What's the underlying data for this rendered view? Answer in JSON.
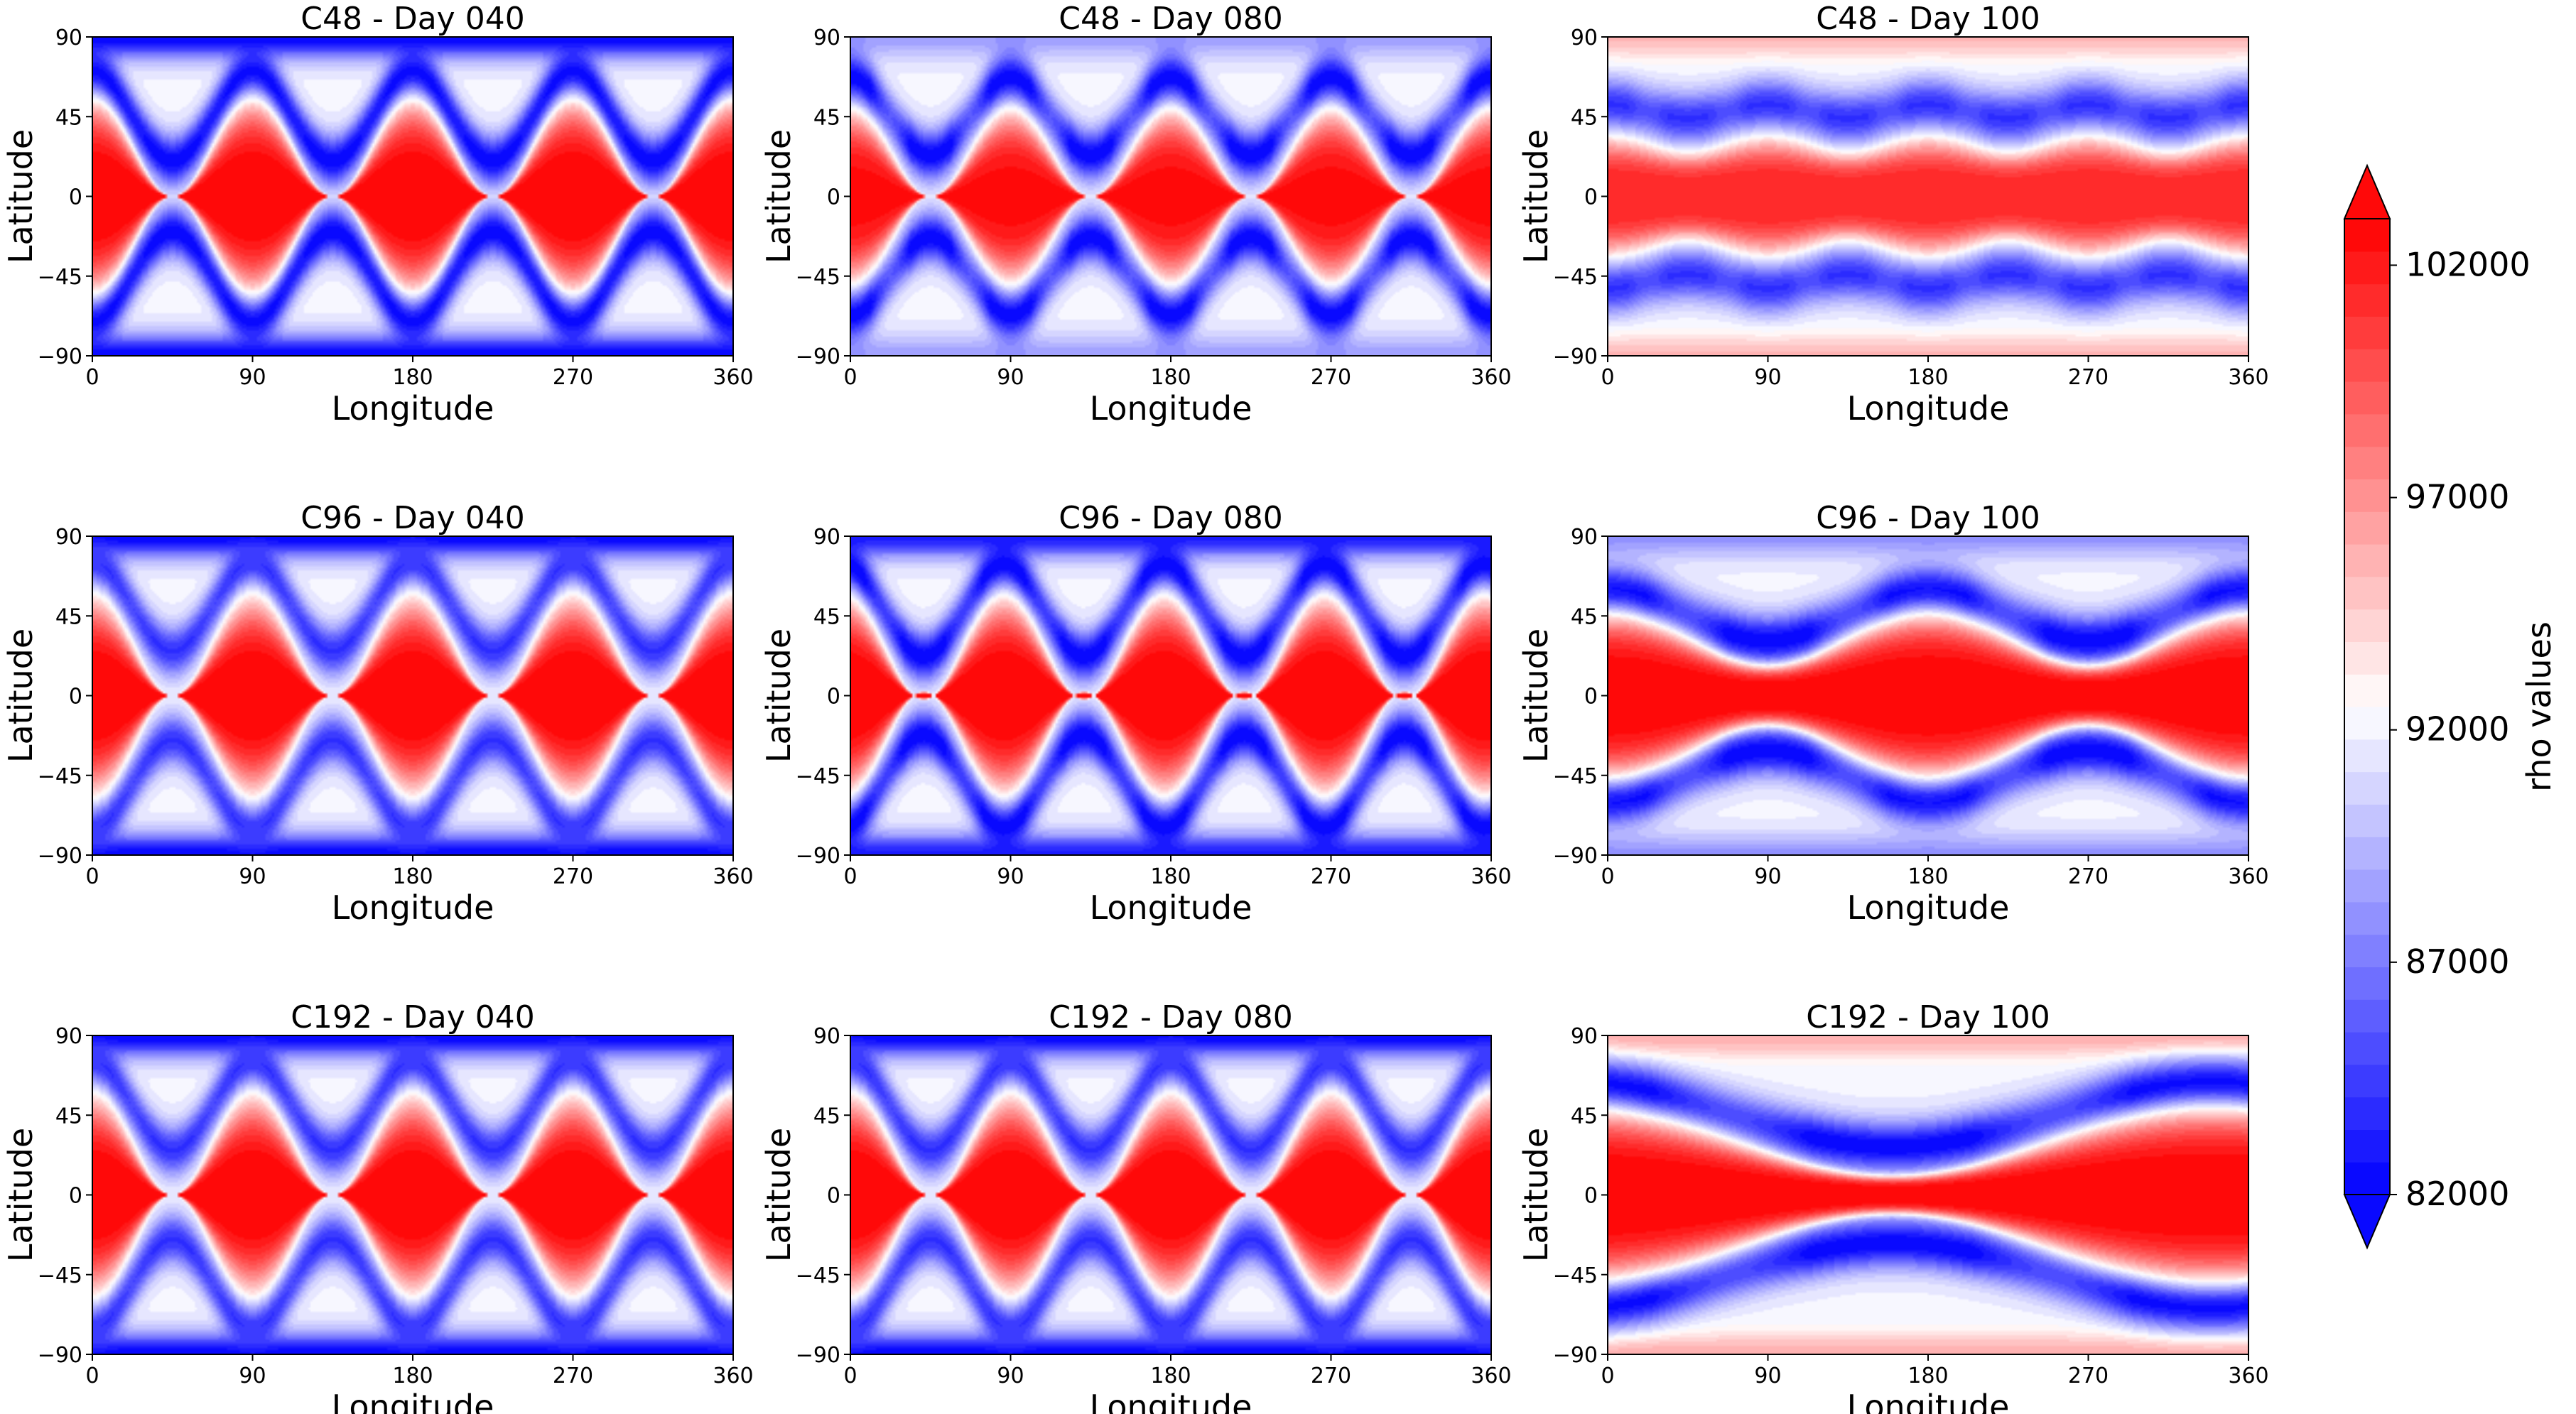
{
  "figure": {
    "colorbar": {
      "label": "rho values",
      "min": 82000,
      "max": 103000,
      "ticks": [
        82000,
        87000,
        92000,
        97000,
        102000
      ],
      "tick_labels": [
        "82000",
        "87000",
        "92000",
        "97000",
        "102000"
      ],
      "levels": 30,
      "extend": "both",
      "colors": {
        "low": "#0000ff",
        "mid": "#ffffff",
        "high": "#ff0000"
      }
    }
  },
  "chart_data": [
    {
      "type": "heatmap",
      "title": "C48 - Day 040",
      "xlabel": "Longitude",
      "ylabel": "Latitude",
      "xlim": [
        0,
        360
      ],
      "ylim": [
        -90,
        90
      ],
      "xticks": [
        "0",
        "90",
        "180",
        "270",
        "360"
      ],
      "yticks": [
        "90",
        "45",
        "0",
        "-45",
        "-90"
      ],
      "pattern": {
        "k": 4,
        "amp_deg": 25,
        "phase_deg": 0,
        "band_deg": 25,
        "peak": 103000,
        "trough": 82000,
        "trough_lat": 45,
        "pole": 82000,
        "trough_mod": 0.1
      }
    },
    {
      "type": "heatmap",
      "title": "C48 - Day 080",
      "xlabel": "Longitude",
      "ylabel": "Latitude",
      "xlim": [
        0,
        360
      ],
      "ylim": [
        -90,
        90
      ],
      "xticks": [
        "0",
        "90",
        "180",
        "270",
        "360"
      ],
      "yticks": [
        "90",
        "45",
        "0",
        "-45",
        "-90"
      ],
      "pattern": {
        "k": 4,
        "amp_deg": 22,
        "phase_deg": 0,
        "band_deg": 22,
        "peak": 102500,
        "trough": 82000,
        "trough_lat": 45,
        "pole": 88500,
        "trough_mod": 0.35
      }
    },
    {
      "type": "heatmap",
      "title": "C48 - Day 100",
      "xlabel": "Longitude",
      "ylabel": "Latitude",
      "xlim": [
        0,
        360
      ],
      "ylim": [
        -90,
        90
      ],
      "xticks": [
        "0",
        "90",
        "180",
        "270",
        "360"
      ],
      "yticks": [
        "90",
        "45",
        "0",
        "-45",
        "-90"
      ],
      "pattern": {
        "k": 4,
        "amp_deg": 4,
        "phase_deg": 0,
        "band_deg": 26,
        "peak": 101500,
        "trough": 84000,
        "trough_lat": 48,
        "pole": 95500,
        "trough_mod": 0.15
      }
    },
    {
      "type": "heatmap",
      "title": "C96 - Day 040",
      "xlabel": "Longitude",
      "ylabel": "Latitude",
      "xlim": [
        0,
        360
      ],
      "ylim": [
        -90,
        90
      ],
      "xticks": [
        "0",
        "90",
        "180",
        "270",
        "360"
      ],
      "yticks": [
        "90",
        "45",
        "0",
        "-45",
        "-90"
      ],
      "pattern": {
        "k": 4,
        "amp_deg": 25,
        "phase_deg": 0,
        "band_deg": 25,
        "peak": 103000,
        "trough": 84000,
        "trough_lat": 50,
        "pole": 82000,
        "trough_mod": 0.1
      }
    },
    {
      "type": "heatmap",
      "title": "C96 - Day 080",
      "xlabel": "Longitude",
      "ylabel": "Latitude",
      "xlim": [
        0,
        360
      ],
      "ylim": [
        -90,
        90
      ],
      "xticks": [
        "0",
        "90",
        "180",
        "270",
        "360"
      ],
      "yticks": [
        "90",
        "45",
        "0",
        "-45",
        "-90"
      ],
      "pattern": {
        "k": 4,
        "amp_deg": 26,
        "phase_deg": 15,
        "band_deg": 24,
        "peak": 103000,
        "trough": 82000,
        "trough_lat": 48,
        "pole": 83000,
        "trough_mod": 0.25
      }
    },
    {
      "type": "heatmap",
      "title": "C96 - Day 100",
      "xlabel": "Longitude",
      "ylabel": "Latitude",
      "xlim": [
        0,
        360
      ],
      "ylim": [
        -90,
        90
      ],
      "xticks": [
        "0",
        "90",
        "180",
        "270",
        "360"
      ],
      "yticks": [
        "90",
        "45",
        "0",
        "-45",
        "-90"
      ],
      "pattern": {
        "k": 2,
        "amp_deg": 14,
        "phase_deg": 0,
        "band_deg": 30,
        "peak": 103000,
        "trough": 82000,
        "trough_lat": 45,
        "pole": 88000,
        "trough_mod": 0.3
      }
    },
    {
      "type": "heatmap",
      "title": "C192 - Day 040",
      "xlabel": "Longitude",
      "ylabel": "Latitude",
      "xlim": [
        0,
        360
      ],
      "ylim": [
        -90,
        90
      ],
      "xticks": [
        "0",
        "90",
        "180",
        "270",
        "360"
      ],
      "yticks": [
        "90",
        "45",
        "0",
        "-45",
        "-90"
      ],
      "pattern": {
        "k": 4,
        "amp_deg": 25,
        "phase_deg": 0,
        "band_deg": 25,
        "peak": 103000,
        "trough": 84000,
        "trough_lat": 50,
        "pole": 82000,
        "trough_mod": 0.1
      }
    },
    {
      "type": "heatmap",
      "title": "C192 - Day 080",
      "xlabel": "Longitude",
      "ylabel": "Latitude",
      "xlim": [
        0,
        360
      ],
      "ylim": [
        -90,
        90
      ],
      "xticks": [
        "0",
        "90",
        "180",
        "270",
        "360"
      ],
      "yticks": [
        "90",
        "45",
        "0",
        "-45",
        "-90"
      ],
      "pattern": {
        "k": 4,
        "amp_deg": 25,
        "phase_deg": 0,
        "band_deg": 25,
        "peak": 103000,
        "trough": 84000,
        "trough_lat": 50,
        "pole": 82000,
        "trough_mod": 0.1
      }
    },
    {
      "type": "heatmap",
      "title": "C192 - Day 100",
      "xlabel": "Longitude",
      "ylabel": "Latitude",
      "xlim": [
        0,
        360
      ],
      "ylim": [
        -90,
        90
      ],
      "xticks": [
        "0",
        "90",
        "180",
        "270",
        "360"
      ],
      "yticks": [
        "90",
        "45",
        "0",
        "-45",
        "-90"
      ],
      "pattern": {
        "k": 1,
        "amp_deg": 18,
        "phase_deg": 20,
        "band_deg": 28,
        "peak": 103000,
        "trough": 82000,
        "trough_lat": 45,
        "pole": 96000,
        "trough_mod": 0.3
      }
    }
  ]
}
